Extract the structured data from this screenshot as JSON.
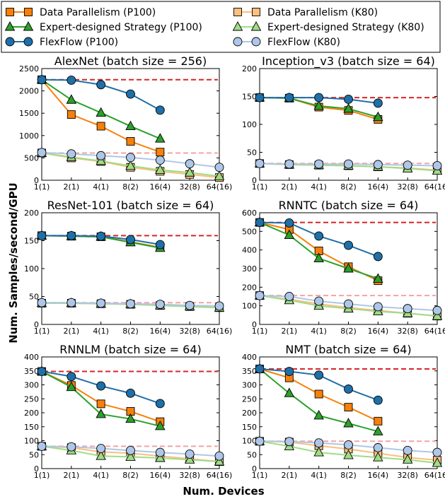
{
  "figure": {
    "xlabel": "Num. Devices",
    "ylabel": "Num. Samples/second/GPU"
  },
  "legend": [
    {
      "label": "Data Parallelism (P100)",
      "color": "#f7800a",
      "marker": "square",
      "light": false
    },
    {
      "label": "Data Parallelism (K80)",
      "color": "#fbbf7e",
      "marker": "square",
      "light": true
    },
    {
      "label": "Expert-designed Strategy (P100)",
      "color": "#2ca02c",
      "marker": "triangle",
      "light": false
    },
    {
      "label": "Expert-designed Strategy (K80)",
      "color": "#9fdc86",
      "marker": "triangle",
      "light": true
    },
    {
      "label": "FlexFlow (P100)",
      "color": "#1f6fa8",
      "marker": "circle",
      "light": false
    },
    {
      "label": "FlexFlow (K80)",
      "color": "#aec7e8",
      "marker": "circle",
      "light": true
    }
  ],
  "colors": {
    "dp_p100": "#f7800a",
    "dp_k80": "#fbbf7e",
    "ex_p100": "#2ca02c",
    "ex_k80": "#9fdc86",
    "ff_p100": "#1f6fa8",
    "ff_k80": "#aec7e8",
    "ideal_p100": "#d62728",
    "ideal_k80": "#f4a3a3"
  },
  "chart_data": [
    {
      "type": "line",
      "title": "AlexNet (batch size = 256)",
      "categories": [
        "1(1)",
        "2(1)",
        "4(1)",
        "8(2)",
        "16(4)",
        "32(8)",
        "64(16)"
      ],
      "ylim": [
        0,
        2500
      ],
      "yticks": [
        0,
        500,
        1000,
        1500,
        2000,
        2500
      ],
      "ideal": {
        "p100": 2250,
        "k80": 610
      },
      "series": [
        {
          "key": "dp_k80",
          "marker": "square",
          "values": [
            610,
            500,
            420,
            290,
            200,
            130,
            60
          ]
        },
        {
          "key": "ex_k80",
          "marker": "triangle",
          "values": [
            610,
            520,
            430,
            320,
            230,
            170,
            90
          ]
        },
        {
          "key": "ff_k80",
          "marker": "circle",
          "values": [
            620,
            590,
            550,
            510,
            450,
            370,
            290
          ]
        },
        {
          "key": "dp_p100",
          "marker": "square",
          "values": [
            2250,
            1470,
            1210,
            870,
            630,
            null,
            null
          ]
        },
        {
          "key": "ex_p100",
          "marker": "triangle",
          "values": [
            2250,
            1800,
            1510,
            1210,
            930,
            null,
            null
          ]
        },
        {
          "key": "ff_p100",
          "marker": "circle",
          "values": [
            2250,
            2240,
            2140,
            1930,
            1570,
            null,
            null
          ]
        }
      ]
    },
    {
      "type": "line",
      "title": "Inception_v3 (batch size = 64)",
      "categories": [
        "1(1)",
        "2(1)",
        "4(1)",
        "8(2)",
        "16(4)",
        "32(8)",
        "64(16)"
      ],
      "ylim": [
        0,
        200
      ],
      "yticks": [
        0,
        50,
        100,
        150,
        200
      ],
      "ideal": {
        "p100": 148,
        "k80": 30
      },
      "series": [
        {
          "key": "dp_k80",
          "marker": "square",
          "values": [
            30,
            28,
            27,
            26,
            24,
            22,
            18
          ]
        },
        {
          "key": "ex_k80",
          "marker": "triangle",
          "values": [
            30,
            28,
            27,
            26,
            24,
            21,
            17
          ]
        },
        {
          "key": "ff_k80",
          "marker": "circle",
          "values": [
            30,
            29,
            29,
            29,
            28,
            27,
            26
          ]
        },
        {
          "key": "dp_p100",
          "marker": "square",
          "values": [
            148,
            147,
            131,
            125,
            109,
            null,
            null
          ]
        },
        {
          "key": "ex_p100",
          "marker": "triangle",
          "values": [
            148,
            147,
            133,
            128,
            113,
            null,
            null
          ]
        },
        {
          "key": "ff_p100",
          "marker": "circle",
          "values": [
            148,
            148,
            148,
            145,
            138,
            null,
            null
          ]
        }
      ]
    },
    {
      "type": "line",
      "title": "ResNet-101 (batch size = 64)",
      "categories": [
        "1(1)",
        "2(1)",
        "4(1)",
        "8(2)",
        "16(4)",
        "32(8)",
        "64(16)"
      ],
      "ylim": [
        0,
        200
      ],
      "yticks": [
        0,
        50,
        100,
        150,
        200
      ],
      "ideal": {
        "p100": 159,
        "k80": 39
      },
      "series": [
        {
          "key": "dp_k80",
          "marker": "square",
          "values": [
            38,
            38,
            37,
            36,
            34,
            32,
            30
          ]
        },
        {
          "key": "ex_k80",
          "marker": "triangle",
          "values": [
            38,
            38,
            37,
            36,
            34,
            32,
            30
          ]
        },
        {
          "key": "ff_k80",
          "marker": "circle",
          "values": [
            39,
            39,
            38,
            37,
            36,
            34,
            33
          ]
        },
        {
          "key": "dp_p100",
          "marker": "square",
          "values": [
            159,
            158,
            157,
            148,
            138,
            null,
            null
          ]
        },
        {
          "key": "ex_p100",
          "marker": "triangle",
          "values": [
            159,
            158,
            157,
            147,
            137,
            null,
            null
          ]
        },
        {
          "key": "ff_p100",
          "marker": "circle",
          "values": [
            159,
            159,
            158,
            152,
            143,
            null,
            null
          ]
        }
      ]
    },
    {
      "type": "line",
      "title": "RNNTC (batch size = 64)",
      "categories": [
        "1(1)",
        "2(1)",
        "4(1)",
        "8(2)",
        "16(4)",
        "32(8)",
        "64(16)"
      ],
      "ylim": [
        0,
        600
      ],
      "yticks": [
        0,
        100,
        200,
        300,
        400,
        500,
        600
      ],
      "ideal": {
        "p100": 548,
        "k80": 155
      },
      "series": [
        {
          "key": "dp_k80",
          "marker": "square",
          "values": [
            155,
            135,
            110,
            90,
            75,
            60,
            45
          ]
        },
        {
          "key": "ex_k80",
          "marker": "triangle",
          "values": [
            155,
            130,
            100,
            85,
            70,
            60,
            45
          ]
        },
        {
          "key": "ff_k80",
          "marker": "circle",
          "values": [
            155,
            150,
            125,
            110,
            95,
            85,
            75
          ]
        },
        {
          "key": "dp_p100",
          "marker": "square",
          "values": [
            548,
            510,
            395,
            310,
            235,
            null,
            null
          ]
        },
        {
          "key": "ex_p100",
          "marker": "triangle",
          "values": [
            548,
            480,
            355,
            300,
            245,
            null,
            null
          ]
        },
        {
          "key": "ff_p100",
          "marker": "circle",
          "values": [
            548,
            545,
            475,
            425,
            365,
            null,
            null
          ]
        }
      ]
    },
    {
      "type": "line",
      "title": "RNNLM (batch size = 64)",
      "categories": [
        "1(1)",
        "2(1)",
        "4(1)",
        "8(2)",
        "16(4)",
        "32(8)",
        "64(16)"
      ],
      "ylim": [
        0,
        400
      ],
      "yticks": [
        0,
        50,
        100,
        150,
        200,
        250,
        300,
        350,
        400
      ],
      "ideal": {
        "p100": 348,
        "k80": 80
      },
      "series": [
        {
          "key": "dp_k80",
          "marker": "square",
          "values": [
            80,
            75,
            60,
            55,
            45,
            35,
            25
          ]
        },
        {
          "key": "ex_k80",
          "marker": "triangle",
          "values": [
            80,
            65,
            45,
            42,
            38,
            32,
            25
          ]
        },
        {
          "key": "ff_k80",
          "marker": "circle",
          "values": [
            80,
            78,
            72,
            65,
            58,
            52,
            45
          ]
        },
        {
          "key": "dp_p100",
          "marker": "square",
          "values": [
            348,
            298,
            232,
            205,
            168,
            null,
            null
          ]
        },
        {
          "key": "ex_p100",
          "marker": "triangle",
          "values": [
            348,
            292,
            195,
            178,
            152,
            null,
            null
          ]
        },
        {
          "key": "ff_p100",
          "marker": "circle",
          "values": [
            348,
            330,
            296,
            270,
            233,
            null,
            null
          ]
        }
      ]
    },
    {
      "type": "line",
      "title": "NMT (batch size = 64)",
      "categories": [
        "1(1)",
        "2(1)",
        "4(1)",
        "8(2)",
        "16(4)",
        "32(8)",
        "64(16)"
      ],
      "ylim": [
        0,
        400
      ],
      "yticks": [
        0,
        50,
        100,
        150,
        200,
        250,
        300,
        350,
        400
      ],
      "ideal": {
        "p100": 357,
        "k80": 98
      },
      "series": [
        {
          "key": "dp_k80",
          "marker": "square",
          "values": [
            98,
            95,
            82,
            70,
            55,
            40,
            30
          ]
        },
        {
          "key": "ex_k80",
          "marker": "triangle",
          "values": [
            98,
            80,
            58,
            48,
            40,
            32,
            20
          ]
        },
        {
          "key": "ff_k80",
          "marker": "circle",
          "values": [
            98,
            97,
            92,
            85,
            75,
            65,
            58
          ]
        },
        {
          "key": "dp_p100",
          "marker": "square",
          "values": [
            357,
            325,
            267,
            220,
            170,
            null,
            null
          ]
        },
        {
          "key": "ex_p100",
          "marker": "triangle",
          "values": [
            357,
            270,
            190,
            162,
            133,
            null,
            null
          ]
        },
        {
          "key": "ff_p100",
          "marker": "circle",
          "values": [
            357,
            348,
            335,
            285,
            245,
            null,
            null
          ]
        }
      ]
    }
  ]
}
